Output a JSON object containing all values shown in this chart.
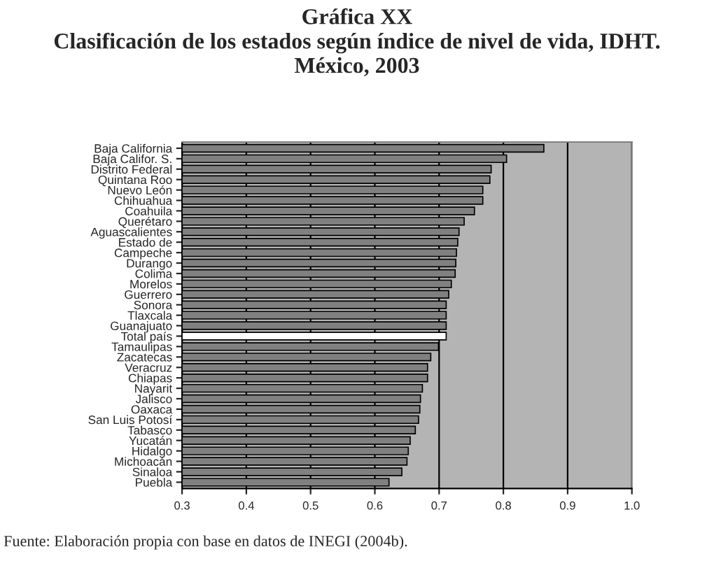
{
  "chart_data": {
    "type": "bar",
    "orientation": "horizontal",
    "title": "Gráfica XX\nClasificación de los estados según índice de nivel de vida, IDHT.\nMéxico, 2003",
    "categories": [
      "Baja California",
      "Baja Califor. S.",
      "Distrito Federal",
      "Quintana Roo",
      "Nuevo León",
      "Chihuahua",
      "Coahuila",
      "Querétaro",
      "Aguascalientes",
      "Estado de",
      "Campeche",
      "Durango",
      "Colima",
      "Morelos",
      "Guerrero",
      "Sonora",
      "Tlaxcala",
      "Guanajuato",
      "Total país",
      "Tamaulipas",
      "Zacatecas",
      "Veracruz",
      "Chiapas",
      "Nayarit",
      "Jalisco",
      "Oaxaca",
      "San Luis Potosí",
      "Tabasco",
      "Yucatán",
      "Hidalgo",
      "Michoacán",
      "Sinaloa",
      "Puebla"
    ],
    "values": [
      0.863,
      0.805,
      0.781,
      0.779,
      0.768,
      0.768,
      0.755,
      0.739,
      0.731,
      0.729,
      0.727,
      0.726,
      0.725,
      0.719,
      0.715,
      0.711,
      0.711,
      0.711,
      0.711,
      0.699,
      0.687,
      0.682,
      0.682,
      0.674,
      0.671,
      0.67,
      0.668,
      0.663,
      0.655,
      0.652,
      0.65,
      0.642,
      0.622
    ],
    "colors": [
      "#808080",
      "#808080",
      "#808080",
      "#808080",
      "#808080",
      "#808080",
      "#808080",
      "#808080",
      "#808080",
      "#808080",
      "#808080",
      "#808080",
      "#808080",
      "#808080",
      "#808080",
      "#808080",
      "#808080",
      "#808080",
      "#ffffff",
      "#808080",
      "#808080",
      "#808080",
      "#808080",
      "#808080",
      "#808080",
      "#808080",
      "#808080",
      "#808080",
      "#808080",
      "#808080",
      "#808080",
      "#808080",
      "#808080"
    ],
    "xlim": [
      0.3,
      1.0
    ],
    "xticks": [
      0.3,
      0.4,
      0.5,
      0.6,
      0.7,
      0.8,
      0.9,
      {
        "value": 1.0,
        "label": "1.0"
      }
    ],
    "grid": "x",
    "annotations": [
      "Fuente: Elaboración propia con base en datos de INEGI (2004b)."
    ]
  }
}
